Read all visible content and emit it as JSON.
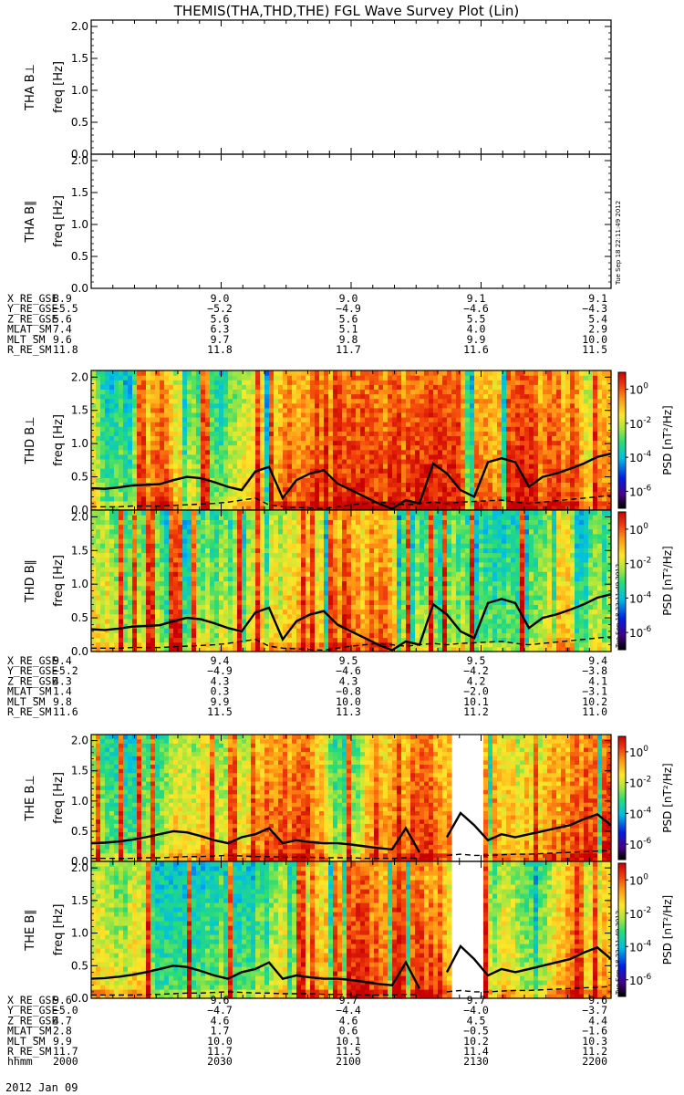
{
  "title": "THEMIS(THA,THD,THE) FGL Wave Survey Plot (Lin)",
  "stamp": "Tue Sep 18 22:11:49 2012",
  "date_label": "2012 Jan 09",
  "colorbar": {
    "label": "PSD [nT²/Hz]",
    "ticks": [
      {
        "base": "10",
        "exp": "0",
        "value": 0
      },
      {
        "base": "10",
        "exp": "-2",
        "value": -2
      },
      {
        "base": "10",
        "exp": "-4",
        "value": -4
      },
      {
        "base": "10",
        "exp": "-6",
        "value": -6
      }
    ]
  },
  "colors": {
    "background": "#ffffff",
    "axis": "#000000",
    "gap": "#ffffff",
    "line": "#000000"
  },
  "chart_data": [
    {
      "type": "heatmap",
      "title": "THA B⊥ freq [Hz]",
      "ylabel_top": "THA B⊥",
      "ylabel": "freq [Hz]",
      "ylim": [
        0,
        2.1
      ],
      "yticks": [
        "0.0",
        "0.5",
        "1.0",
        "1.5",
        "2.0"
      ],
      "has_data": false
    },
    {
      "type": "heatmap",
      "title": "THA B∥ freq [Hz]",
      "ylabel_top": "THA B∥",
      "ylabel": "freq [Hz]",
      "ylim": [
        0,
        2.1
      ],
      "yticks": [
        "0.0",
        "0.5",
        "1.0",
        "1.5",
        "2.0"
      ],
      "has_data": false
    },
    {
      "type": "heatmap",
      "ylabel_top": "THD B⊥",
      "ylabel": "freq [Hz]",
      "ylim": [
        0,
        2.1
      ],
      "yticks": [
        "0.0",
        "0.5",
        "1.0",
        "1.5",
        "2.0"
      ],
      "has_data": true,
      "seed": 11,
      "gap": null,
      "color_scale": "log10 PSD [-7, 1]",
      "dominant_freq": [
        0.33,
        0.32,
        0.34,
        0.37,
        0.38,
        0.39,
        0.45,
        0.5,
        0.48,
        0.42,
        0.35,
        0.3,
        0.58,
        0.65,
        0.18,
        0.45,
        0.55,
        0.6,
        0.4,
        0.3,
        0.2,
        0.1,
        0.02,
        0.15,
        0.1,
        0.7,
        0.55,
        0.3,
        0.2,
        0.72,
        0.78,
        0.72,
        0.35,
        0.5,
        0.55,
        0.62,
        0.7,
        0.8,
        0.85
      ],
      "dashed_line": [
        0.05,
        0.05,
        0.05,
        0.06,
        0.06,
        0.06,
        0.07,
        0.08,
        0.09,
        0.1,
        0.12,
        0.15,
        0.18,
        0.08,
        0.05,
        0.04,
        0.03,
        0.02,
        0.05,
        0.08,
        0.1,
        0.12,
        0.1,
        0.08,
        0.1,
        0.12,
        0.1,
        0.12,
        0.13,
        0.14,
        0.15,
        0.12,
        0.1,
        0.12,
        0.14,
        0.16,
        0.18,
        0.2,
        0.22
      ]
    },
    {
      "type": "heatmap",
      "ylabel_top": "THD B∥",
      "ylabel": "freq [Hz]",
      "ylim": [
        0,
        2.1
      ],
      "yticks": [
        "0.0",
        "0.5",
        "1.0",
        "1.5",
        "2.0"
      ],
      "has_data": true,
      "seed": 23,
      "gap": null,
      "color_scale": "log10 PSD [-7, 1]",
      "dominant_freq": [
        0.33,
        0.32,
        0.34,
        0.37,
        0.38,
        0.39,
        0.45,
        0.5,
        0.48,
        0.42,
        0.35,
        0.3,
        0.58,
        0.65,
        0.18,
        0.45,
        0.55,
        0.6,
        0.4,
        0.3,
        0.2,
        0.1,
        0.02,
        0.15,
        0.1,
        0.7,
        0.55,
        0.3,
        0.2,
        0.72,
        0.78,
        0.72,
        0.35,
        0.5,
        0.55,
        0.62,
        0.7,
        0.8,
        0.85
      ],
      "dashed_line": [
        0.05,
        0.05,
        0.05,
        0.06,
        0.06,
        0.06,
        0.07,
        0.08,
        0.09,
        0.1,
        0.12,
        0.15,
        0.18,
        0.08,
        0.05,
        0.04,
        0.03,
        0.02,
        0.05,
        0.08,
        0.1,
        0.12,
        0.1,
        0.08,
        0.1,
        0.12,
        0.1,
        0.12,
        0.13,
        0.14,
        0.15,
        0.12,
        0.1,
        0.12,
        0.14,
        0.16,
        0.18,
        0.2,
        0.22
      ]
    },
    {
      "type": "heatmap",
      "ylabel_top": "THE B⊥",
      "ylabel": "freq [Hz]",
      "ylim": [
        0,
        2.1
      ],
      "yticks": [
        "0.0",
        "0.5",
        "1.0",
        "1.5",
        "2.0"
      ],
      "has_data": true,
      "seed": 37,
      "gap": [
        "2124",
        "2130"
      ],
      "color_scale": "log10 PSD [-7, 1]",
      "dominant_freq": [
        0.3,
        0.31,
        0.33,
        0.36,
        0.4,
        0.45,
        0.5,
        0.48,
        0.42,
        0.35,
        0.3,
        0.4,
        0.45,
        0.55,
        0.3,
        0.35,
        0.32,
        0.3,
        0.3,
        0.28,
        0.25,
        0.22,
        0.2,
        0.55,
        0.15,
        null,
        0.4,
        0.8,
        0.6,
        0.35,
        0.45,
        0.4,
        0.45,
        0.5,
        0.55,
        0.6,
        0.7,
        0.78,
        0.6
      ],
      "dashed_line": [
        0.05,
        0.05,
        0.05,
        0.05,
        0.06,
        0.06,
        0.07,
        0.08,
        0.08,
        0.09,
        0.1,
        0.09,
        0.08,
        0.08,
        0.07,
        0.07,
        0.07,
        0.06,
        0.06,
        0.06,
        0.05,
        0.05,
        0.05,
        0.06,
        0.05,
        null,
        0.1,
        0.12,
        0.1,
        0.1,
        0.11,
        0.12,
        0.12,
        0.13,
        0.14,
        0.15,
        0.16,
        0.17,
        0.18
      ]
    },
    {
      "type": "heatmap",
      "ylabel_top": "THE B∥",
      "ylabel": "freq [Hz]",
      "ylim": [
        0,
        2.1
      ],
      "yticks": [
        "0.0",
        "0.5",
        "1.0",
        "1.5",
        "2.0"
      ],
      "has_data": true,
      "seed": 51,
      "gap": [
        "2124",
        "2130"
      ],
      "color_scale": "log10 PSD [-7, 1]",
      "dominant_freq": [
        0.3,
        0.31,
        0.33,
        0.36,
        0.4,
        0.45,
        0.5,
        0.48,
        0.42,
        0.35,
        0.3,
        0.4,
        0.45,
        0.55,
        0.3,
        0.35,
        0.32,
        0.3,
        0.3,
        0.28,
        0.25,
        0.22,
        0.2,
        0.55,
        0.15,
        null,
        0.4,
        0.8,
        0.6,
        0.35,
        0.45,
        0.4,
        0.45,
        0.5,
        0.55,
        0.6,
        0.7,
        0.78,
        0.6
      ],
      "dashed_line": [
        0.05,
        0.05,
        0.05,
        0.05,
        0.06,
        0.06,
        0.07,
        0.08,
        0.08,
        0.09,
        0.1,
        0.09,
        0.08,
        0.08,
        0.07,
        0.07,
        0.07,
        0.06,
        0.06,
        0.06,
        0.05,
        0.05,
        0.05,
        0.06,
        0.05,
        null,
        0.1,
        0.12,
        0.1,
        0.1,
        0.11,
        0.12,
        0.12,
        0.13,
        0.14,
        0.15,
        0.16,
        0.17,
        0.18
      ]
    }
  ],
  "ephemeris": [
    {
      "probe": "THA",
      "rows": [
        {
          "label": "X_RE_GSE",
          "values": [
            "8.9",
            "9.0",
            "9.0",
            "9.1",
            "9.1"
          ]
        },
        {
          "label": "Y_RE_GSE",
          "values": [
            "−5.5",
            "−5.2",
            "−4.9",
            "−4.6",
            "−4.3"
          ]
        },
        {
          "label": "Z_RE_GSE",
          "values": [
            "5.6",
            "5.6",
            "5.6",
            "5.5",
            "5.4"
          ]
        },
        {
          "label": "MLAT_SM",
          "values": [
            "7.4",
            "6.3",
            "5.1",
            "4.0",
            "2.9"
          ]
        },
        {
          "label": "MLT_SM",
          "values": [
            "9.6",
            "9.7",
            "9.8",
            "9.9",
            "10.0"
          ]
        },
        {
          "label": "R_RE_SM",
          "values": [
            "11.8",
            "11.8",
            "11.7",
            "11.6",
            "11.5"
          ]
        }
      ]
    },
    {
      "probe": "THD",
      "rows": [
        {
          "label": "X_RE_GSE",
          "values": [
            "9.4",
            "9.4",
            "9.5",
            "9.5",
            "9.4"
          ]
        },
        {
          "label": "Y_RE_GSE",
          "values": [
            "−5.2",
            "−4.9",
            "−4.6",
            "−4.2",
            "−3.8"
          ]
        },
        {
          "label": "Z_RE_GSE",
          "values": [
            "4.3",
            "4.3",
            "4.3",
            "4.2",
            "4.1"
          ]
        },
        {
          "label": "MLAT_SM",
          "values": [
            "1.4",
            "0.3",
            "−0.8",
            "−2.0",
            "−3.1"
          ]
        },
        {
          "label": "MLT_SM",
          "values": [
            "9.8",
            "9.9",
            "10.0",
            "10.1",
            "10.2"
          ]
        },
        {
          "label": "R_RE_SM",
          "values": [
            "11.6",
            "11.5",
            "11.3",
            "11.2",
            "11.0"
          ]
        }
      ]
    },
    {
      "probe": "THE",
      "rows": [
        {
          "label": "X_RE_GSE",
          "values": [
            "9.6",
            "9.6",
            "9.7",
            "9.7",
            "9.6"
          ]
        },
        {
          "label": "Y_RE_GSE",
          "values": [
            "−5.0",
            "−4.7",
            "−4.4",
            "−4.0",
            "−3.7"
          ]
        },
        {
          "label": "Z_RE_GSE",
          "values": [
            "4.7",
            "4.6",
            "4.6",
            "4.5",
            "4.4"
          ]
        },
        {
          "label": "MLAT_SM",
          "values": [
            "2.8",
            "1.7",
            "0.6",
            "−0.5",
            "−1.6"
          ]
        },
        {
          "label": "MLT_SM",
          "values": [
            "9.9",
            "10.0",
            "10.1",
            "10.2",
            "10.3"
          ]
        },
        {
          "label": "R_RE_SM",
          "values": [
            "11.7",
            "11.7",
            "11.5",
            "11.4",
            "11.2"
          ]
        },
        {
          "label": "hhmm",
          "values": [
            "2000",
            "2030",
            "2100",
            "2130",
            "2200"
          ]
        }
      ]
    }
  ]
}
